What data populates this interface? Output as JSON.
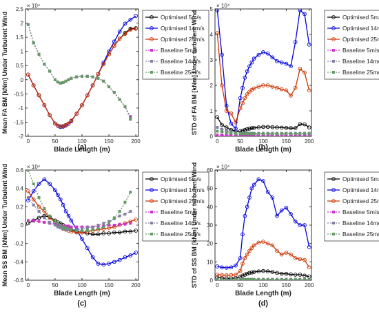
{
  "figure": {
    "panels": [
      "(a)",
      "(b)",
      "(c)",
      "(d)"
    ]
  },
  "legend_entries": [
    {
      "label": "Optimised 5m/s",
      "color": "#000000",
      "dashed": false,
      "marker": "circle"
    },
    {
      "label": "Optimised 14m/s",
      "color": "#0000dd",
      "dashed": false,
      "marker": "circle"
    },
    {
      "label": "Optimised 25m/s",
      "color": "#cc3300",
      "dashed": false,
      "marker": "circle"
    },
    {
      "label": "Baseline 5m/s",
      "color": "#cc33cc",
      "dashed": true,
      "marker": "square"
    },
    {
      "label": "Baseline 14m/s",
      "color": "#8080a0",
      "dashed": true,
      "marker": "square"
    },
    {
      "label": "Baseline 25m/s",
      "color": "#669966",
      "dashed": true,
      "marker": "square"
    }
  ],
  "chart_data": [
    {
      "type": "line",
      "panel_label": "(a)",
      "xlabel": "Blade Length (m)",
      "ylabel": "Mean FA BM [kNm] Under Turbulent Wind",
      "exponent_label": "× 10⁴",
      "xlim": [
        -5,
        205
      ],
      "ylim": [
        -2,
        2.5
      ],
      "xticks": [
        0,
        50,
        100,
        150,
        200
      ],
      "yticks": [
        -2,
        -1.5,
        -1,
        -0.5,
        0,
        0.5,
        1,
        1.5,
        2,
        2.5
      ],
      "ytick_labels": [
        "-2",
        "-1.5",
        "-1",
        "-0.5",
        "0",
        "0.5",
        "1",
        "1.5",
        "2",
        "2.5"
      ],
      "grid": false,
      "x": [
        0,
        10,
        20,
        30,
        40,
        50,
        55,
        60,
        65,
        70,
        75,
        80,
        90,
        100,
        110,
        120,
        130,
        140,
        150,
        160,
        170,
        180,
        190,
        200
      ],
      "series": [
        {
          "name": "Optimised 5m/s",
          "values": [
            0.18,
            -0.2,
            -0.55,
            -0.9,
            -1.25,
            -1.55,
            -1.62,
            -1.65,
            -1.64,
            -1.6,
            -1.55,
            -1.45,
            -1.2,
            -0.9,
            -0.55,
            -0.2,
            0.2,
            0.55,
            0.9,
            1.2,
            1.45,
            1.65,
            1.8,
            1.82
          ]
        },
        {
          "name": "Optimised 14m/s",
          "values": [
            0.18,
            -0.2,
            -0.55,
            -0.9,
            -1.25,
            -1.55,
            -1.63,
            -1.67,
            -1.66,
            -1.62,
            -1.56,
            -1.47,
            -1.2,
            -0.9,
            -0.55,
            -0.2,
            0.2,
            0.6,
            1.0,
            1.35,
            1.7,
            1.98,
            2.12,
            2.25
          ]
        },
        {
          "name": "Optimised 25m/s",
          "values": [
            0.18,
            -0.2,
            -0.55,
            -0.9,
            -1.25,
            -1.55,
            -1.62,
            -1.65,
            -1.64,
            -1.6,
            -1.55,
            -1.45,
            -1.2,
            -0.9,
            -0.55,
            -0.2,
            0.2,
            0.55,
            0.9,
            1.2,
            1.45,
            1.62,
            1.77,
            1.8
          ]
        },
        {
          "name": "Baseline 5m/s",
          "values": [
            1.95,
            1.3,
            0.9,
            0.55,
            0.3,
            0.0,
            -0.08,
            -0.12,
            -0.1,
            -0.05,
            0.0,
            0.05,
            0.1,
            0.12,
            0.12,
            0.1,
            0.05,
            -0.05,
            -0.25,
            -0.45,
            -0.7,
            -0.95,
            -1.3,
            null
          ]
        },
        {
          "name": "Baseline 14m/s",
          "values": [
            1.95,
            1.3,
            0.9,
            0.55,
            0.3,
            0.0,
            -0.08,
            -0.12,
            -0.1,
            -0.05,
            0.0,
            0.05,
            0.1,
            0.12,
            0.12,
            0.1,
            0.05,
            -0.05,
            -0.25,
            -0.45,
            -0.7,
            -0.95,
            -1.35,
            null
          ]
        },
        {
          "name": "Baseline 25m/s",
          "values": [
            1.95,
            1.3,
            0.9,
            0.55,
            0.3,
            0.0,
            -0.08,
            -0.12,
            -0.1,
            -0.05,
            0.0,
            0.05,
            0.1,
            0.12,
            0.12,
            0.1,
            0.05,
            -0.05,
            -0.25,
            -0.45,
            -0.7,
            -0.95,
            -1.4,
            null
          ]
        }
      ]
    },
    {
      "type": "line",
      "panel_label": "(b)",
      "xlabel": "Blade Length (m)",
      "ylabel": "STD of FA BM [kNm] Under turbulent Wind",
      "exponent_label": "× 10⁴",
      "xlim": [
        -5,
        205
      ],
      "ylim": [
        0,
        5
      ],
      "xticks": [
        0,
        50,
        100,
        150,
        200
      ],
      "yticks": [
        0,
        1,
        2,
        3,
        4,
        5
      ],
      "ytick_labels": [
        "0",
        "1",
        "2",
        "3",
        "4",
        "5"
      ],
      "grid": false,
      "x": [
        0,
        10,
        20,
        30,
        40,
        50,
        55,
        60,
        65,
        70,
        75,
        80,
        90,
        100,
        110,
        120,
        130,
        140,
        150,
        160,
        170,
        180,
        190,
        200
      ],
      "series": [
        {
          "name": "Optimised 5m/s",
          "values": [
            0.75,
            0.45,
            0.35,
            0.25,
            0.2,
            0.2,
            0.22,
            0.25,
            0.28,
            0.3,
            0.32,
            0.33,
            0.35,
            0.37,
            0.37,
            0.36,
            0.35,
            0.34,
            0.33,
            0.32,
            0.32,
            0.48,
            0.47,
            0.35
          ]
        },
        {
          "name": "Optimised 14m/s",
          "values": [
            4.95,
            3.2,
            1.2,
            0.5,
            0.3,
            1.5,
            1.9,
            2.3,
            2.55,
            2.75,
            2.9,
            3.05,
            3.2,
            3.3,
            3.25,
            3.1,
            2.95,
            2.9,
            2.85,
            2.75,
            3.7,
            4.95,
            4.8,
            3.6
          ]
        },
        {
          "name": "Optimised 25m/s",
          "values": [
            4.05,
            2.0,
            1.0,
            0.9,
            0.55,
            1.1,
            1.3,
            1.5,
            1.65,
            1.75,
            1.82,
            1.88,
            1.95,
            2.0,
            2.0,
            1.95,
            1.9,
            1.85,
            1.8,
            1.6,
            1.9,
            2.65,
            2.5,
            1.8
          ]
        },
        {
          "name": "Baseline 5m/s",
          "values": [
            0.05,
            0.05,
            0.05,
            0.05,
            0.05,
            0.05,
            0.05,
            0.05,
            0.05,
            0.05,
            0.05,
            0.05,
            0.05,
            0.05,
            0.05,
            0.05,
            0.05,
            0.05,
            0.05,
            0.05,
            0.05,
            0.05,
            0.05,
            0.05
          ]
        },
        {
          "name": "Baseline 14m/s",
          "values": [
            0.35,
            0.28,
            0.22,
            0.18,
            0.15,
            0.12,
            0.12,
            0.12,
            0.12,
            0.12,
            0.12,
            0.12,
            0.12,
            0.12,
            0.12,
            0.12,
            0.12,
            0.12,
            0.12,
            0.12,
            0.12,
            0.12,
            0.12,
            0.12
          ]
        },
        {
          "name": "Baseline 25m/s",
          "values": [
            0.2,
            0.18,
            0.15,
            0.12,
            0.1,
            0.1,
            0.1,
            0.1,
            0.1,
            0.1,
            0.1,
            0.1,
            0.1,
            0.1,
            0.1,
            0.1,
            0.1,
            0.1,
            0.1,
            0.1,
            0.1,
            0.1,
            0.1,
            0.1
          ]
        }
      ]
    },
    {
      "type": "line",
      "panel_label": "(c)",
      "xlabel": "Blade Length (m)",
      "ylabel": "Mean SS BM [kNm] Under Turbulent Wind",
      "exponent_label": "× 10⁴",
      "xlim": [
        -5,
        205
      ],
      "ylim": [
        -0.6,
        0.6
      ],
      "xticks": [
        0,
        50,
        100,
        150,
        200
      ],
      "yticks": [
        -0.6,
        -0.4,
        -0.2,
        0,
        0.2,
        0.4,
        0.6
      ],
      "ytick_labels": [
        "-0.6",
        "-0.4",
        "-0.2",
        "0",
        "0.2",
        "0.4",
        "0.6"
      ],
      "grid": false,
      "x": [
        0,
        10,
        20,
        30,
        40,
        50,
        55,
        60,
        65,
        70,
        75,
        80,
        90,
        100,
        110,
        120,
        130,
        140,
        150,
        160,
        170,
        180,
        190,
        200
      ],
      "series": [
        {
          "name": "Optimised 5m/s",
          "values": [
            0.02,
            0.05,
            0.08,
            0.1,
            0.09,
            0.05,
            0.03,
            0.02,
            0.0,
            -0.02,
            -0.04,
            -0.05,
            -0.07,
            -0.08,
            -0.09,
            -0.1,
            -0.1,
            -0.09,
            -0.09,
            -0.08,
            -0.08,
            -0.07,
            -0.07,
            -0.06
          ]
        },
        {
          "name": "Optimised 14m/s",
          "values": [
            0.27,
            0.37,
            0.45,
            0.5,
            0.45,
            0.38,
            0.33,
            0.28,
            0.22,
            0.15,
            0.1,
            0.05,
            -0.05,
            -0.15,
            -0.25,
            -0.35,
            -0.42,
            -0.43,
            -0.42,
            -0.4,
            -0.38,
            -0.35,
            -0.33,
            -0.3
          ]
        },
        {
          "name": "Optimised 25m/s",
          "values": [
            0.37,
            0.28,
            0.2,
            0.15,
            0.08,
            0.03,
            0.0,
            -0.02,
            -0.04,
            -0.05,
            -0.06,
            -0.07,
            -0.08,
            -0.08,
            -0.07,
            -0.06,
            -0.05,
            -0.04,
            -0.03,
            -0.02,
            0.0,
            0.02,
            0.04,
            0.06
          ]
        },
        {
          "name": "Baseline 5m/s",
          "values": [
            0.05,
            0.05,
            0.04,
            0.03,
            0.02,
            0.01,
            0.0,
            0.0,
            -0.01,
            -0.01,
            -0.01,
            -0.02,
            -0.02,
            -0.02,
            -0.02,
            -0.02,
            -0.01,
            -0.01,
            0.0,
            0.0,
            0.01,
            0.01,
            0.02,
            null
          ]
        },
        {
          "name": "Baseline 14m/s",
          "values": [
            0.3,
            0.22,
            0.15,
            0.08,
            0.03,
            0.0,
            -0.02,
            -0.03,
            -0.04,
            -0.05,
            -0.05,
            -0.05,
            -0.05,
            -0.04,
            -0.03,
            -0.02,
            0.0,
            0.02,
            0.04,
            0.07,
            0.1,
            0.12,
            0.15,
            null
          ]
        },
        {
          "name": "Baseline 25m/s",
          "values": [
            0.6,
            0.45,
            0.3,
            0.18,
            0.1,
            0.04,
            0.02,
            0.0,
            -0.02,
            -0.03,
            -0.04,
            -0.05,
            -0.06,
            -0.06,
            -0.06,
            -0.05,
            -0.04,
            -0.02,
            0.02,
            0.08,
            0.15,
            0.25,
            0.36,
            null
          ]
        }
      ]
    },
    {
      "type": "line",
      "panel_label": "(d)",
      "xlabel": "Blade Length (m)",
      "ylabel": "STD of SS BM [kNm] Under turbulent Wind",
      "exponent_label": "× 10⁴",
      "xlim": [
        -5,
        205
      ],
      "ylim": [
        0,
        60
      ],
      "xticks": [
        0,
        50,
        100,
        150,
        200
      ],
      "yticks": [
        0,
        10,
        20,
        30,
        40,
        50,
        60
      ],
      "ytick_labels": [
        "0",
        "10",
        "20",
        "30",
        "40",
        "50",
        "60"
      ],
      "grid": false,
      "x": [
        0,
        10,
        20,
        30,
        40,
        50,
        55,
        60,
        65,
        70,
        75,
        80,
        90,
        100,
        110,
        120,
        130,
        140,
        150,
        160,
        170,
        180,
        190,
        200
      ],
      "series": [
        {
          "name": "Optimised 5m/s",
          "values": [
            1.5,
            1.2,
            1.0,
            1.0,
            1.2,
            1.8,
            2.5,
            3.0,
            3.5,
            4.0,
            4.2,
            4.5,
            4.8,
            5.0,
            4.8,
            4.5,
            4.0,
            3.5,
            3.5,
            3.2,
            3.0,
            3.0,
            2.5,
            2.0
          ]
        },
        {
          "name": "Optimised 14m/s",
          "values": [
            7.5,
            7.0,
            6.8,
            7.0,
            8.0,
            12.0,
            25.0,
            35.0,
            40.0,
            45.0,
            50.0,
            52.0,
            55.0,
            54.0,
            48.0,
            45.0,
            35.0,
            38.0,
            39.5,
            36.0,
            32.0,
            30.0,
            30.0,
            18.0
          ]
        },
        {
          "name": "Optimised 25m/s",
          "values": [
            3.0,
            2.8,
            2.7,
            2.8,
            3.0,
            5.0,
            9.0,
            12.0,
            14.0,
            16.0,
            17.5,
            19.0,
            20.5,
            21.0,
            20.0,
            19.0,
            16.0,
            14.0,
            15.0,
            14.0,
            12.0,
            11.5,
            11.0,
            7.0
          ]
        },
        {
          "name": "Baseline 5m/s",
          "values": [
            0.2,
            0.2,
            0.2,
            0.2,
            0.2,
            0.2,
            0.2,
            0.2,
            0.2,
            0.2,
            0.2,
            0.2,
            0.2,
            0.2,
            0.2,
            0.2,
            0.2,
            0.2,
            0.2,
            0.2,
            0.2,
            0.2,
            0.2,
            0.2
          ]
        },
        {
          "name": "Baseline 14m/s",
          "values": [
            0.5,
            0.5,
            0.5,
            0.5,
            0.5,
            0.5,
            0.5,
            0.5,
            0.5,
            0.5,
            0.5,
            0.5,
            0.5,
            0.5,
            0.5,
            0.5,
            0.5,
            0.5,
            0.5,
            0.5,
            0.5,
            0.5,
            0.5,
            0.5
          ]
        },
        {
          "name": "Baseline 25m/s",
          "values": [
            0.3,
            0.3,
            0.3,
            0.3,
            0.3,
            0.3,
            0.3,
            0.3,
            0.3,
            0.3,
            0.3,
            0.3,
            0.3,
            0.3,
            0.3,
            0.3,
            0.3,
            0.3,
            0.3,
            0.3,
            0.3,
            0.3,
            0.3,
            0.3
          ]
        }
      ]
    }
  ]
}
